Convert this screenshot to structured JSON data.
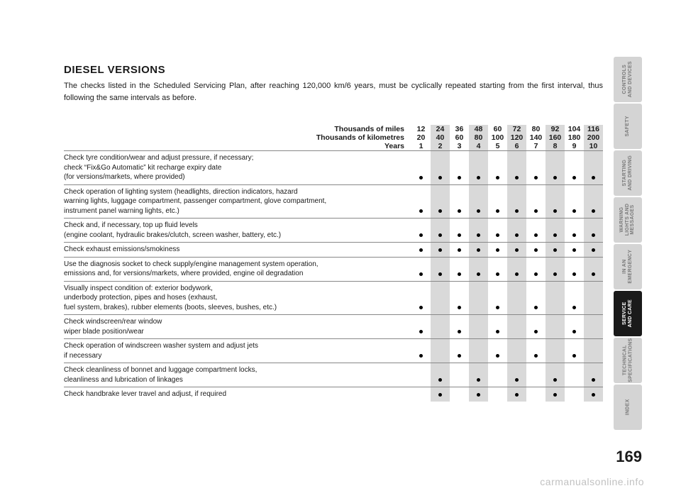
{
  "heading": "DIESEL VERSIONS",
  "intro": "The checks listed in the Scheduled Servicing Plan, after reaching 120,000 km/6 years, must be cyclically repeated starting from the first interval, thus following the same intervals as before.",
  "header_rows": [
    {
      "label": "Thousands of miles",
      "values": [
        "12",
        "24",
        "36",
        "48",
        "60",
        "72",
        "80",
        "92",
        "104",
        "116"
      ]
    },
    {
      "label": "Thousands of kilometres",
      "values": [
        "20",
        "40",
        "60",
        "80",
        "100",
        "120",
        "140",
        "160",
        "180",
        "200"
      ]
    },
    {
      "label": "Years",
      "values": [
        "1",
        "2",
        "3",
        "4",
        "5",
        "6",
        "7",
        "8",
        "9",
        "10"
      ]
    }
  ],
  "rows": [
    {
      "label": "Check tyre condition/wear and adjust pressure, if necessary;\ncheck “Fix&Go Automatic” kit recharge expiry date\n(for versions/markets, where provided)",
      "dots": [
        1,
        1,
        1,
        1,
        1,
        1,
        1,
        1,
        1,
        1
      ]
    },
    {
      "label": "Check operation of lighting system (headlights, direction indicators, hazard\nwarning lights, luggage compartment, passenger compartment, glove compartment,\ninstrument panel warning lights, etc.)",
      "dots": [
        1,
        1,
        1,
        1,
        1,
        1,
        1,
        1,
        1,
        1
      ]
    },
    {
      "label": "Check and, if necessary, top up fluid levels\n(engine coolant, hydraulic brakes/clutch, screen washer, battery, etc.)",
      "dots": [
        1,
        1,
        1,
        1,
        1,
        1,
        1,
        1,
        1,
        1
      ]
    },
    {
      "label": "Check exhaust emissions/smokiness",
      "dots": [
        1,
        1,
        1,
        1,
        1,
        1,
        1,
        1,
        1,
        1
      ]
    },
    {
      "label": "Use the diagnosis socket to check supply/engine management system operation,\nemissions and, for versions/markets, where provided, engine oil degradation",
      "dots": [
        1,
        1,
        1,
        1,
        1,
        1,
        1,
        1,
        1,
        1
      ]
    },
    {
      "label": "Visually inspect condition of: exterior bodywork,\nunderbody protection, pipes and hoses (exhaust,\nfuel system, brakes), rubber elements (boots, sleeves, bushes, etc.)",
      "dots": [
        1,
        0,
        1,
        0,
        1,
        0,
        1,
        0,
        1,
        0
      ]
    },
    {
      "label": "Check windscreen/rear window\nwiper blade position/wear",
      "dots": [
        1,
        0,
        1,
        0,
        1,
        0,
        1,
        0,
        1,
        0
      ]
    },
    {
      "label": "Check operation of windscreen washer system and adjust jets\nif necessary",
      "dots": [
        1,
        0,
        1,
        0,
        1,
        0,
        1,
        0,
        1,
        0
      ]
    },
    {
      "label": "Check cleanliness of bonnet and luggage compartment locks,\ncleanliness and lubrication of linkages",
      "dots": [
        0,
        1,
        0,
        1,
        0,
        1,
        0,
        1,
        0,
        1
      ]
    },
    {
      "label": "Check handbrake lever travel and adjust, if required",
      "dots": [
        0,
        1,
        0,
        1,
        0,
        1,
        0,
        1,
        0,
        1
      ]
    }
  ],
  "tabs": [
    {
      "label": "CONTROLS\nAND DEVICES",
      "active": false
    },
    {
      "label": "SAFETY",
      "active": false
    },
    {
      "label": "STARTING\nAND DRIVING",
      "active": false
    },
    {
      "label": "WARNING\nLIGHTS AND\nMESSAGES",
      "active": false
    },
    {
      "label": "IN AN\nEMERGENCY",
      "active": false
    },
    {
      "label": "SERVICE\nAND CARE",
      "active": true
    },
    {
      "label": "TECHNICAL\nSPECIFICATIONS",
      "active": false
    },
    {
      "label": "INDEX",
      "active": false
    }
  ],
  "page_number": "169",
  "watermark": "carmanualsonline.info",
  "colors": {
    "background": "#ffffff",
    "text": "#1a1a1a",
    "shade": "#d9d9d9",
    "rule": "#888888",
    "tab_inactive_bg": "#d4d4d4",
    "tab_inactive_text": "#7a7a7a",
    "tab_active_bg": "#1a1a1a",
    "tab_active_text": "#ffffff",
    "watermark": "rgba(0,0,0,0.25)"
  }
}
